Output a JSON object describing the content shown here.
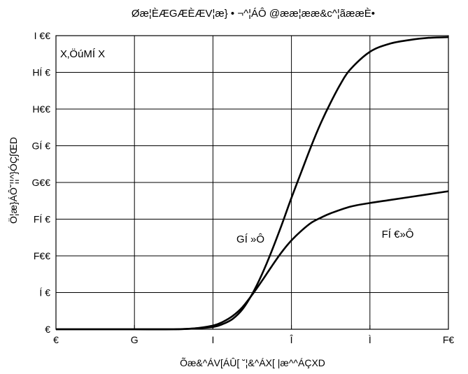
{
  "chart_data": {
    "type": "line",
    "title": "Øæ¦ÈÆGÆÈÆV¦æ} • ¬^¦ÁÔ @ææ¦ææ&c^¦ãææÈ•",
    "xlabel": "Õæ&^ÁV[ÁÛ[ ˘¦&^ÁX[ |æ^^ÁÇXD",
    "ylabel": "Ö¦æ}ÁÔ˘¦¦^}ÓÇ∫ŒD",
    "annotation": "X‚ÖúMÍ X",
    "x": {
      "ticks": [
        "€",
        "G",
        "I",
        "Î",
        "Ì",
        "F€"
      ],
      "range": [
        0,
        10
      ]
    },
    "y": {
      "ticks": [
        "€",
        "Í €",
        "F€€",
        "FÍ €",
        "G€€",
        "GÍ €",
        "H€€",
        "HÍ €",
        "I €€"
      ],
      "range": [
        0,
        400
      ]
    },
    "grid": true,
    "series": [
      {
        "name": "GÍ »Ô",
        "x": [
          0,
          1,
          2,
          3,
          3.5,
          4,
          4.25,
          4.5,
          4.75,
          5,
          5.25,
          5.5,
          5.75,
          6,
          6.25,
          6.5,
          6.75,
          7,
          7.25,
          7.5,
          8,
          8.5,
          9,
          9.5,
          10
        ],
        "y": [
          0,
          0,
          0,
          0,
          1,
          3,
          7,
          14,
          27,
          48,
          75,
          107,
          142,
          179,
          214,
          249,
          281,
          309,
          334,
          354,
          378,
          389,
          394,
          397,
          398
        ]
      },
      {
        "name": "FÍ €»Ô",
        "x": [
          0,
          1,
          2,
          3,
          3.5,
          4,
          4.25,
          4.5,
          4.75,
          5,
          5.25,
          5.5,
          5.75,
          6,
          6.25,
          6.5,
          6.75,
          7,
          7.5,
          8,
          8.5,
          9,
          9.5,
          10
        ],
        "y": [
          0,
          0,
          0,
          0,
          1,
          5,
          10,
          18,
          30,
          47,
          66,
          86,
          105,
          121,
          134,
          145,
          152,
          158,
          167,
          172,
          176,
          180,
          184,
          188
        ]
      }
    ],
    "labels": [
      {
        "text": "GÍ »Ô",
        "x": 4.6,
        "y": 118
      },
      {
        "text": "FÍ €»Ô",
        "x": 8.3,
        "y": 125
      }
    ]
  }
}
